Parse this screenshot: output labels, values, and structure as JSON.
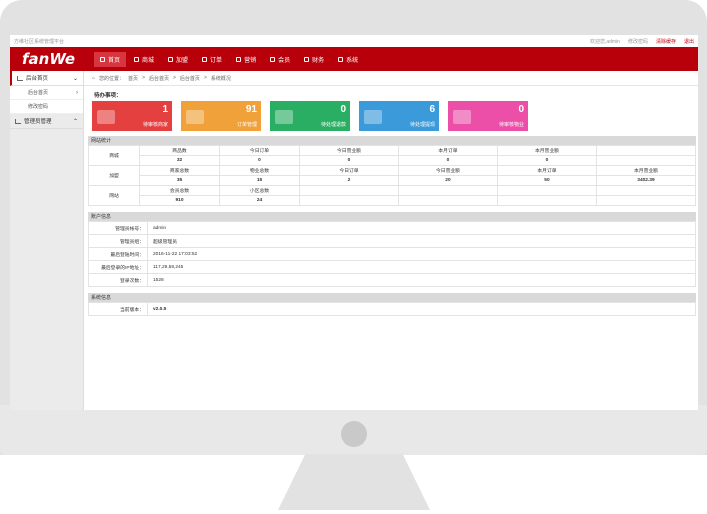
{
  "topbar": {
    "site_title": "方维社区系统管理平台",
    "welcome": "欢迎您,admin",
    "change_password": "修改密码",
    "clear_cache": "清除缓存",
    "logout": "退出"
  },
  "logo": "fanWe",
  "nav": [
    "首页",
    "商城",
    "加盟",
    "订单",
    "营销",
    "会员",
    "财务",
    "系统"
  ],
  "sidebar": {
    "group1": "后台首页",
    "sub1": "后台首页",
    "sub2": "修改密码",
    "group2": "管理员管理"
  },
  "breadcrumb": {
    "label": "您的位置：",
    "home": "首页",
    "sep": ">",
    "level2": "后台首页",
    "level3": "后台首页",
    "level4": "系统概况"
  },
  "todo_title": "待办事项：",
  "cards": [
    {
      "num": "1",
      "label": "待审核商家",
      "color": "#e54040"
    },
    {
      "num": "91",
      "label": "订单管理",
      "color": "#f0a13a"
    },
    {
      "num": "0",
      "label": "待处理退款",
      "color": "#2aae63"
    },
    {
      "num": "6",
      "label": "待处理提现",
      "color": "#3b9ad9"
    },
    {
      "num": "0",
      "label": "待审核物业",
      "color": "#ec4fa8"
    }
  ],
  "stats": {
    "heading": "网站统计",
    "mall": {
      "label": "商城",
      "h": [
        "商品数",
        "今日订单",
        "今日营业额",
        "本月订单",
        "本月营业额",
        ""
      ],
      "v": [
        "32",
        "0",
        "0",
        "0",
        "0",
        ""
      ]
    },
    "join": {
      "label": "加盟",
      "h": [
        "商家总数",
        "物业总数",
        "今日订单",
        "今日营业额",
        "本月订单",
        "本月营业额"
      ],
      "v": [
        "35",
        "15",
        "2",
        "20",
        "50",
        "3402.39"
      ]
    },
    "site": {
      "label": "网站",
      "h": [
        "会员总数",
        "小区总数",
        "",
        "",
        "",
        ""
      ],
      "v": [
        "910",
        "24",
        "",
        "",
        "",
        ""
      ]
    }
  },
  "account": {
    "heading": "账户信息",
    "rows": [
      {
        "k": "管理员帐号：",
        "v": "admin"
      },
      {
        "k": "管理员组：",
        "v": "超级管理员"
      },
      {
        "k": "最后登陆时间：",
        "v": "2016-11-22 17:03:52"
      },
      {
        "k": "最后登录的IP地址：",
        "v": "117,29,58,245"
      },
      {
        "k": "登录次数：",
        "v": "1528"
      }
    ]
  },
  "system": {
    "heading": "系统信息",
    "rows": [
      {
        "k": "当前版本：",
        "v": "v2.0.5"
      }
    ]
  }
}
